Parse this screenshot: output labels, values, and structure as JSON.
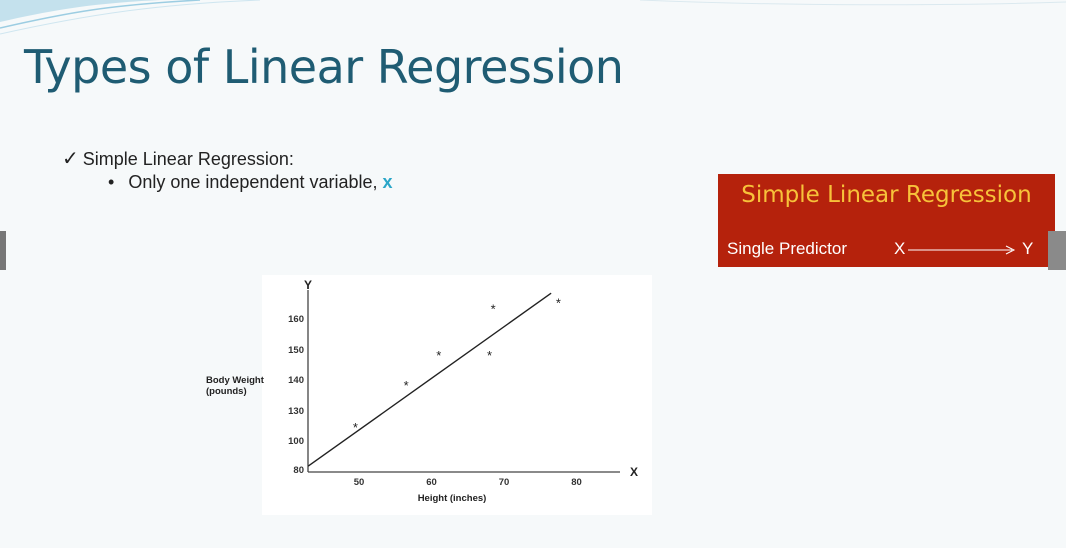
{
  "slide": {
    "title": "Types of Linear Regression",
    "bullet1": "Simple Linear Regression:",
    "bullet2_text": "Only one independent variable, ",
    "bullet2_var": "x",
    "check_glyph": "✓",
    "dot_glyph": "•"
  },
  "box": {
    "title": "Simple Linear Regression",
    "predictor_label": "Single Predictor",
    "from": "X",
    "to": "Y"
  },
  "colors": {
    "title": "#1f5c73",
    "box_bg": "#b5220c",
    "box_title": "#f7c23a",
    "accent_x": "#2aa6c8"
  },
  "chart_data": {
    "type": "scatter",
    "title": "",
    "xlabel": "Height (inches)",
    "ylabel": "Body Weight\n(pounds)",
    "x_axis_letter": "X",
    "y_axis_letter": "Y",
    "x_ticks": [
      "50",
      "60",
      "70",
      "80"
    ],
    "y_ticks": [
      "80",
      "100",
      "130",
      "140",
      "150",
      "160"
    ],
    "points": [
      {
        "x": 49.5,
        "y": 113
      },
      {
        "x": 56.5,
        "y": 138
      },
      {
        "x": 61,
        "y": 148
      },
      {
        "x": 68,
        "y": 148
      },
      {
        "x": 68.5,
        "y": 163
      },
      {
        "x": 77.5,
        "y": 165
      }
    ],
    "regression_line": [
      {
        "x": 43,
        "y": 82
      },
      {
        "x": 76.5,
        "y": 168
      }
    ],
    "marker": "*",
    "grid": false
  }
}
